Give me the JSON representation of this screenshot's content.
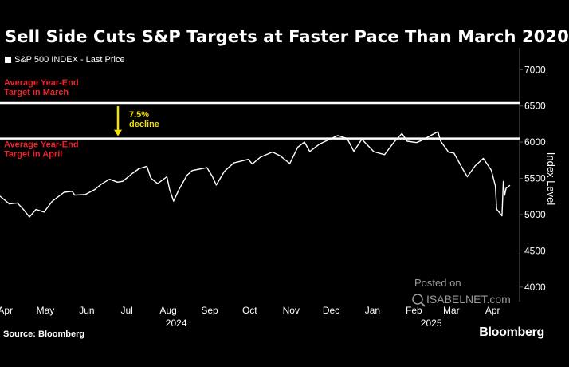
{
  "chart_data": {
    "type": "line",
    "title": "Sell Side Cuts S&P Targets at Faster Pace Than March 2020",
    "ylabel": "Index Level",
    "ylim": [
      3800,
      7300
    ],
    "y_ticks": [
      4000,
      4500,
      5000,
      5500,
      6000,
      6500,
      7000
    ],
    "x_range": [
      "2024-03-28",
      "2025-04-14"
    ],
    "x_ticks": [
      {
        "label": "Apr",
        "date": "2024-04-01"
      },
      {
        "label": "May",
        "date": "2024-05-01"
      },
      {
        "label": "Jun",
        "date": "2024-06-01"
      },
      {
        "label": "Jul",
        "date": "2024-07-01"
      },
      {
        "label": "Aug",
        "date": "2024-08-01"
      },
      {
        "label": "Sep",
        "date": "2024-09-01"
      },
      {
        "label": "Oct",
        "date": "2024-10-01"
      },
      {
        "label": "Nov",
        "date": "2024-11-01"
      },
      {
        "label": "Dec",
        "date": "2024-12-01"
      },
      {
        "label": "Jan",
        "date": "2025-01-01"
      },
      {
        "label": "Feb",
        "date": "2025-02-01"
      },
      {
        "label": "Mar",
        "date": "2025-03-01"
      },
      {
        "label": "Apr",
        "date": "2025-04-01"
      }
    ],
    "year_labels": [
      {
        "label": "2024",
        "date": "2024-08-07"
      },
      {
        "label": "2025",
        "date": "2025-02-14"
      }
    ],
    "legend": {
      "placement": "top-left"
    },
    "grid": false,
    "series": [
      {
        "name": "S&P 500 INDEX - Last Price",
        "color": "#ffffff",
        "points": [
          [
            "2024-03-28",
            5254
          ],
          [
            "2024-04-04",
            5147
          ],
          [
            "2024-04-10",
            5160
          ],
          [
            "2024-04-15",
            5061
          ],
          [
            "2024-04-19",
            4967
          ],
          [
            "2024-04-24",
            5071
          ],
          [
            "2024-04-30",
            5035
          ],
          [
            "2024-05-06",
            5180
          ],
          [
            "2024-05-15",
            5308
          ],
          [
            "2024-05-21",
            5321
          ],
          [
            "2024-05-23",
            5268
          ],
          [
            "2024-05-31",
            5277
          ],
          [
            "2024-06-07",
            5346
          ],
          [
            "2024-06-12",
            5421
          ],
          [
            "2024-06-18",
            5487
          ],
          [
            "2024-06-24",
            5448
          ],
          [
            "2024-06-28",
            5460
          ],
          [
            "2024-07-05",
            5567
          ],
          [
            "2024-07-10",
            5633
          ],
          [
            "2024-07-16",
            5667
          ],
          [
            "2024-07-19",
            5505
          ],
          [
            "2024-07-24",
            5427
          ],
          [
            "2024-07-31",
            5522
          ],
          [
            "2024-08-02",
            5346
          ],
          [
            "2024-08-05",
            5186
          ],
          [
            "2024-08-09",
            5344
          ],
          [
            "2024-08-15",
            5543
          ],
          [
            "2024-08-19",
            5608
          ],
          [
            "2024-08-30",
            5648
          ],
          [
            "2024-09-03",
            5528
          ],
          [
            "2024-09-06",
            5408
          ],
          [
            "2024-09-12",
            5595
          ],
          [
            "2024-09-19",
            5713
          ],
          [
            "2024-09-30",
            5762
          ],
          [
            "2024-10-03",
            5699
          ],
          [
            "2024-10-09",
            5792
          ],
          [
            "2024-10-18",
            5864
          ],
          [
            "2024-10-24",
            5810
          ],
          [
            "2024-10-31",
            5705
          ],
          [
            "2024-11-06",
            5929
          ],
          [
            "2024-11-11",
            6001
          ],
          [
            "2024-11-15",
            5870
          ],
          [
            "2024-11-22",
            5969
          ],
          [
            "2024-11-29",
            6032
          ],
          [
            "2024-12-06",
            6090
          ],
          [
            "2024-12-13",
            6051
          ],
          [
            "2024-12-18",
            5872
          ],
          [
            "2024-12-24",
            6040
          ],
          [
            "2025-01-02",
            5868
          ],
          [
            "2025-01-10",
            5827
          ],
          [
            "2025-01-17",
            5997
          ],
          [
            "2025-01-23",
            6119
          ],
          [
            "2025-01-27",
            6012
          ],
          [
            "2025-02-03",
            5994
          ],
          [
            "2025-02-07",
            6026
          ],
          [
            "2025-02-19",
            6144
          ],
          [
            "2025-02-21",
            6013
          ],
          [
            "2025-02-27",
            5861
          ],
          [
            "2025-03-03",
            5849
          ],
          [
            "2025-03-10",
            5615
          ],
          [
            "2025-03-13",
            5522
          ],
          [
            "2025-03-19",
            5675
          ],
          [
            "2025-03-25",
            5776
          ],
          [
            "2025-03-31",
            5612
          ],
          [
            "2025-04-03",
            5396
          ],
          [
            "2025-04-04",
            5074
          ],
          [
            "2025-04-08",
            4982
          ],
          [
            "2025-04-09",
            5456
          ],
          [
            "2025-04-10",
            5268
          ],
          [
            "2025-04-11",
            5363
          ],
          [
            "2025-04-14",
            5405
          ]
        ]
      }
    ],
    "reference_lines": [
      {
        "label": "Average Year-End\nTarget in March",
        "value": 6540,
        "color": "#ffffff"
      },
      {
        "label": "Average Year-End\nTarget in April",
        "value": 6050,
        "color": "#ffffff"
      }
    ],
    "annotations": [
      {
        "text": "7.5%\ndecline",
        "color": "#f5e000"
      }
    ]
  },
  "legend_label": "S&P 500 INDEX - Last Price",
  "source": "Source: Bloomberg",
  "brand": "Bloomberg",
  "watermark": {
    "line1": "Posted on",
    "line2": "ISABELNET.com"
  }
}
